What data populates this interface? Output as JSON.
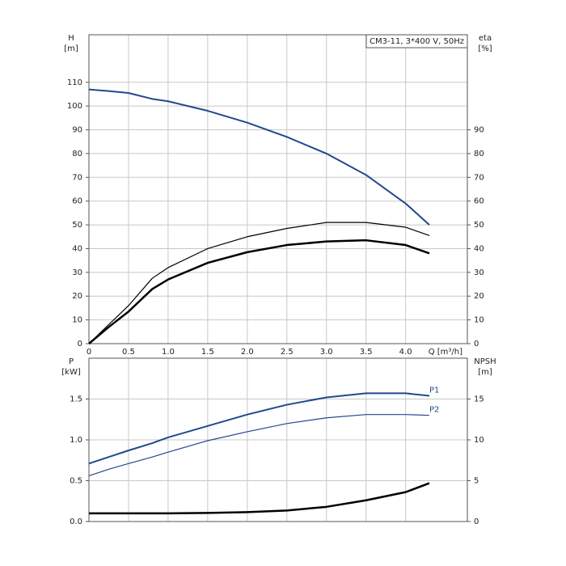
{
  "chart_data": [
    {
      "type": "line",
      "title": "CM3-11, 3*400 V, 50Hz",
      "x_label": "Q [m³/h]",
      "y_label": [
        "H",
        "[m]"
      ],
      "y2_label": [
        "eta",
        "[%]"
      ],
      "x": [
        0,
        0.25,
        0.5,
        0.8,
        1.0,
        1.5,
        2.0,
        2.5,
        3.0,
        3.5,
        4.0,
        4.3
      ],
      "xlim": [
        0,
        4.78
      ],
      "ylim": [
        0,
        130
      ],
      "y2lim": [
        0,
        130
      ],
      "xticks": [
        0,
        0.5,
        {
          "value": 1,
          "label": "1.0"
        },
        1.5,
        {
          "value": 2,
          "label": "2.0"
        },
        2.5,
        {
          "value": 3,
          "label": "3.0"
        },
        3.5,
        {
          "value": 4,
          "label": "4.0"
        }
      ],
      "yticks": [
        0,
        10,
        20,
        30,
        40,
        50,
        60,
        70,
        80,
        90,
        100,
        110
      ],
      "y2ticks": [
        0,
        10,
        20,
        30,
        40,
        50,
        60,
        70,
        80,
        90
      ],
      "grid": true,
      "series": [
        {
          "color": "#24478f",
          "width": 2,
          "values": [
            107,
            106.3,
            105.5,
            103,
            102,
            98,
            93,
            87,
            80,
            71,
            59,
            50
          ]
        },
        {
          "color": "#000000",
          "width": 1.2,
          "axis": "y2",
          "values": [
            0,
            8,
            16,
            27.5,
            32,
            40,
            45,
            48.5,
            51,
            51,
            49,
            45.5
          ]
        },
        {
          "color": "#000000",
          "width": 2.5,
          "axis": "y2",
          "values": [
            0,
            7,
            13.5,
            23,
            27,
            34,
            38.5,
            41.5,
            43,
            43.5,
            41.5,
            38
          ]
        }
      ]
    },
    {
      "type": "line",
      "y_label": [
        "P",
        "[kW]"
      ],
      "y2_label": [
        "NPSH",
        "[m]"
      ],
      "x": [
        0,
        0.25,
        0.5,
        0.8,
        1.0,
        1.5,
        2.0,
        2.5,
        3.0,
        3.5,
        4.0,
        4.3
      ],
      "xlim": [
        0,
        4.78
      ],
      "ylim": [
        0,
        2.0
      ],
      "y2lim": [
        0,
        20
      ],
      "yticks": [
        {
          "value": 0,
          "label": "0.0"
        },
        0.5,
        {
          "value": 1,
          "label": "1.0"
        },
        1.5
      ],
      "y2ticks": [
        0,
        5,
        10,
        15
      ],
      "grid": true,
      "series": [
        {
          "name": "P1",
          "color": "#24478f",
          "width": 2,
          "values": [
            0.71,
            0.79,
            0.87,
            0.96,
            1.03,
            1.17,
            1.31,
            1.43,
            1.52,
            1.57,
            1.57,
            1.54
          ]
        },
        {
          "name": "P2",
          "color": "#24478f",
          "width": 1.2,
          "values": [
            0.56,
            0.64,
            0.71,
            0.79,
            0.85,
            0.99,
            1.1,
            1.2,
            1.27,
            1.31,
            1.31,
            1.3
          ]
        },
        {
          "color": "#000000",
          "width": 2.5,
          "axis": "y2",
          "values": [
            1.0,
            1.0,
            1.0,
            1.0,
            1.0,
            1.05,
            1.15,
            1.35,
            1.8,
            2.6,
            3.6,
            4.7
          ]
        }
      ]
    }
  ]
}
